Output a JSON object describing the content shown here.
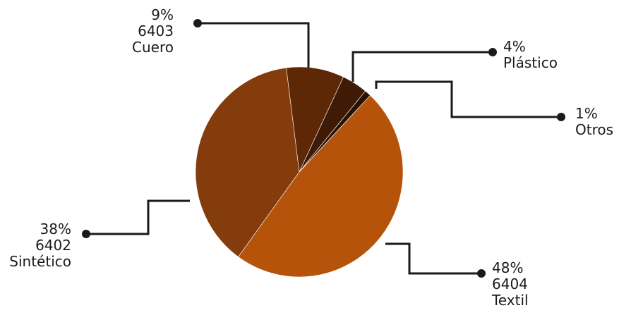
{
  "chart_data": {
    "type": "pie",
    "slices": [
      {
        "percent_label": "48%",
        "code": "6404",
        "name": "Textil",
        "value": 48,
        "color": "#B45309"
      },
      {
        "percent_label": "38%",
        "code": "6402",
        "name": "Sintético",
        "value": 38,
        "color": "#843C0C"
      },
      {
        "percent_label": "9%",
        "code": "6403",
        "name": "Cuero",
        "value": 9,
        "color": "#5E2807"
      },
      {
        "percent_label": "4%",
        "code": "",
        "name": "Plástico",
        "value": 4,
        "color": "#3F1A05"
      },
      {
        "percent_label": "1%",
        "code": "",
        "name": "Otros",
        "value": 1,
        "color": "#2A1203"
      }
    ]
  }
}
